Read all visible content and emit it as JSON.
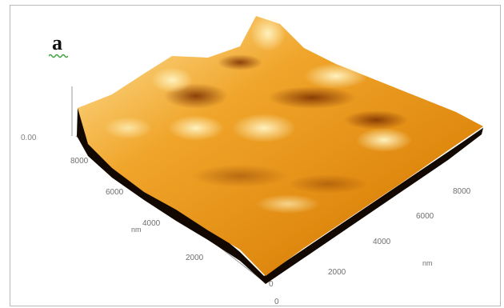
{
  "figure": {
    "panel_label": "a",
    "z_axis": {
      "tick": "0.00"
    },
    "left_axis": {
      "label": "nm",
      "ticks": [
        "8000",
        "6000",
        "4000",
        "2000",
        "0"
      ]
    },
    "right_axis": {
      "label": "nm",
      "ticks": [
        "0",
        "2000",
        "4000",
        "6000",
        "8000"
      ]
    },
    "colors": {
      "surface_dark": "#8a3a00",
      "surface_mid": "#e08a10",
      "surface_light": "#ffe49a",
      "side_wall": "#120800"
    }
  }
}
